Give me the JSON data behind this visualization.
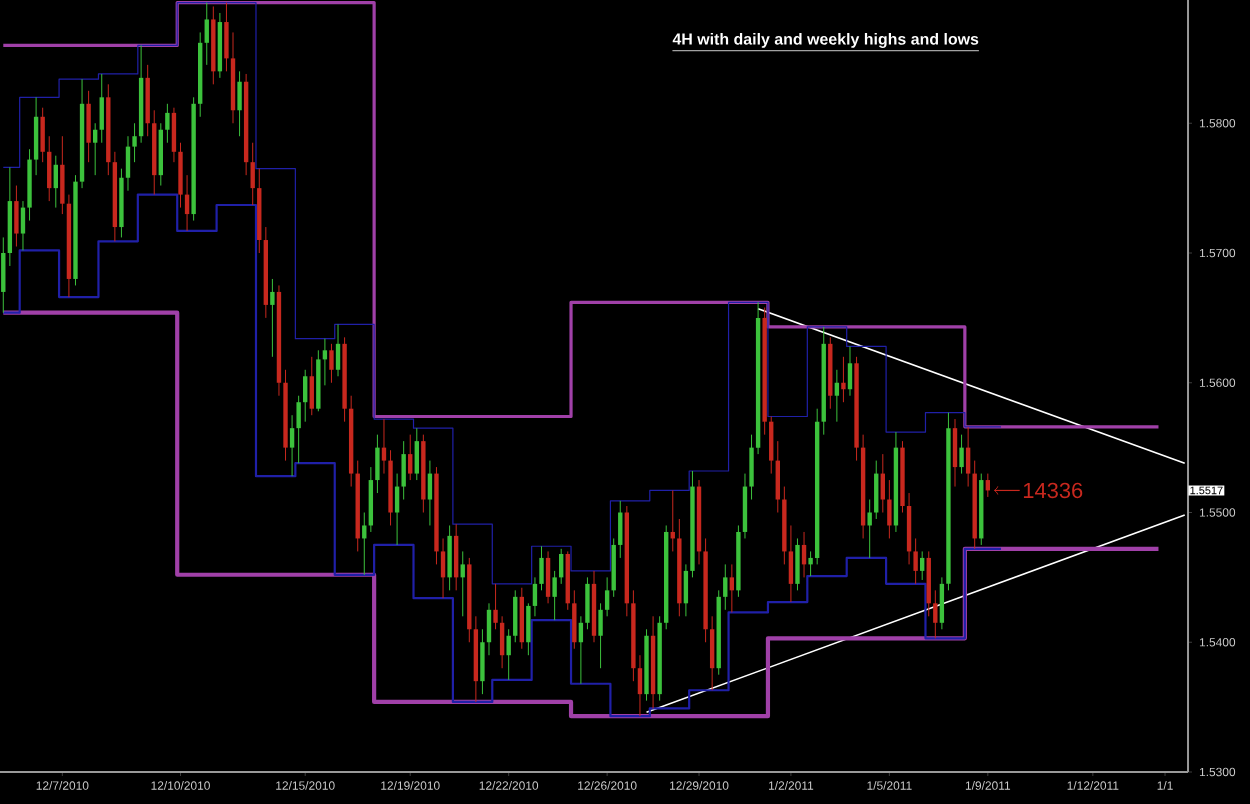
{
  "chart_data": {
    "type": "candlestick",
    "title": "4H with daily and weekly highs and lows",
    "categories": [
      null,
      null,
      null,
      null,
      null,
      null,
      null,
      null,
      null,
      "12/7/2010",
      null,
      null,
      null,
      null,
      null,
      null,
      null,
      null,
      null,
      null,
      null,
      null,
      null,
      null,
      null,
      null,
      null,
      "12/10/2010",
      null,
      null,
      null,
      null,
      null,
      null,
      null,
      null,
      null,
      null,
      null,
      null,
      null,
      null,
      null,
      null,
      null,
      null,
      "12/15/2010",
      null,
      null,
      null,
      null,
      null,
      null,
      null,
      null,
      null,
      null,
      null,
      null,
      null,
      null,
      null,
      "12/19/2010",
      null,
      null,
      null,
      null,
      null,
      null,
      null,
      null,
      null,
      null,
      null,
      null,
      null,
      null,
      "12/22/2010",
      null,
      null,
      null,
      null,
      null,
      null,
      null,
      null,
      null,
      null,
      null,
      null,
      null,
      null,
      "12/26/2010",
      null,
      null,
      null,
      null,
      null,
      null,
      null,
      null,
      null,
      null,
      null,
      null,
      null,
      "12/29/2010",
      null,
      null,
      null,
      null,
      null,
      null,
      null,
      null,
      null,
      null,
      null,
      null,
      null,
      "1/2/2011",
      null,
      null,
      null,
      null,
      null,
      null,
      null,
      null,
      null,
      null,
      null,
      null,
      null,
      null,
      "1/5/2011",
      null,
      null,
      null,
      null,
      null,
      null,
      null,
      null,
      null,
      null,
      null,
      null,
      null,
      null,
      "1/9/2011",
      null,
      null,
      null,
      null,
      null,
      null,
      null,
      null,
      null,
      null,
      null,
      null,
      null,
      null,
      null,
      "1/12/2011",
      null,
      null,
      null,
      null,
      null,
      null,
      null,
      null,
      null,
      null,
      "1/1",
      null,
      null,
      null
    ],
    "ohlc": [
      [
        1.567,
        1.5712,
        1.5654,
        1.57
      ],
      [
        1.57,
        1.5766,
        1.569,
        1.574
      ],
      [
        1.574,
        1.5752,
        1.5705,
        1.5715
      ],
      [
        1.5715,
        1.574,
        1.5702,
        1.5735
      ],
      [
        1.5735,
        1.578,
        1.5725,
        1.5772
      ],
      [
        1.5772,
        1.582,
        1.576,
        1.5805
      ],
      [
        1.5805,
        1.5812,
        1.577,
        1.5778
      ],
      [
        1.5778,
        1.579,
        1.574,
        1.575
      ],
      [
        1.575,
        1.5775,
        1.5735,
        1.5768
      ],
      [
        1.5768,
        1.579,
        1.573,
        1.5738
      ],
      [
        1.5738,
        1.5745,
        1.5666,
        1.568
      ],
      [
        1.568,
        1.576,
        1.5675,
        1.5755
      ],
      [
        1.5755,
        1.5834,
        1.575,
        1.5815
      ],
      [
        1.5815,
        1.5825,
        1.577,
        1.5785
      ],
      [
        1.5785,
        1.58,
        1.576,
        1.5795
      ],
      [
        1.5795,
        1.5838,
        1.5785,
        1.582
      ],
      [
        1.582,
        1.583,
        1.576,
        1.577
      ],
      [
        1.577,
        1.5778,
        1.5709,
        1.572
      ],
      [
        1.572,
        1.5765,
        1.5712,
        1.5758
      ],
      [
        1.5758,
        1.579,
        1.5748,
        1.5782
      ],
      [
        1.5782,
        1.58,
        1.577,
        1.579
      ],
      [
        1.579,
        1.586,
        1.5785,
        1.5835
      ],
      [
        1.5835,
        1.5845,
        1.579,
        1.58
      ],
      [
        1.58,
        1.581,
        1.5745,
        1.576
      ],
      [
        1.576,
        1.58,
        1.5752,
        1.5795
      ],
      [
        1.5795,
        1.5815,
        1.5785,
        1.5808
      ],
      [
        1.5808,
        1.5812,
        1.577,
        1.5778
      ],
      [
        1.5778,
        1.5785,
        1.5735,
        1.5745
      ],
      [
        1.5745,
        1.576,
        1.5717,
        1.573
      ],
      [
        1.573,
        1.582,
        1.5725,
        1.5815
      ],
      [
        1.5815,
        1.587,
        1.5805,
        1.5862
      ],
      [
        1.5862,
        1.5893,
        1.5845,
        1.588
      ],
      [
        1.588,
        1.589,
        1.583,
        1.584
      ],
      [
        1.584,
        1.5885,
        1.5835,
        1.5878
      ],
      [
        1.5878,
        1.5893,
        1.584,
        1.585
      ],
      [
        1.585,
        1.587,
        1.58,
        1.581
      ],
      [
        1.581,
        1.584,
        1.579,
        1.5832
      ],
      [
        1.5832,
        1.5838,
        1.576,
        1.577
      ],
      [
        1.577,
        1.5785,
        1.5737,
        1.575
      ],
      [
        1.575,
        1.5765,
        1.57,
        1.571
      ],
      [
        1.571,
        1.572,
        1.565,
        1.566
      ],
      [
        1.566,
        1.568,
        1.562,
        1.567
      ],
      [
        1.567,
        1.5675,
        1.559,
        1.56
      ],
      [
        1.56,
        1.561,
        1.554,
        1.555
      ],
      [
        1.555,
        1.5575,
        1.5528,
        1.5565
      ],
      [
        1.5565,
        1.559,
        1.5538,
        1.5585
      ],
      [
        1.5585,
        1.561,
        1.557,
        1.5605
      ],
      [
        1.5605,
        1.562,
        1.5575,
        1.558
      ],
      [
        1.558,
        1.5625,
        1.5578,
        1.5618
      ],
      [
        1.5618,
        1.5634,
        1.5598,
        1.5625
      ],
      [
        1.5625,
        1.563,
        1.56,
        1.561
      ],
      [
        1.561,
        1.5645,
        1.5605,
        1.563
      ],
      [
        1.563,
        1.5635,
        1.557,
        1.558
      ],
      [
        1.558,
        1.559,
        1.552,
        1.553
      ],
      [
        1.553,
        1.554,
        1.547,
        1.548
      ],
      [
        1.548,
        1.55,
        1.5452,
        1.549
      ],
      [
        1.549,
        1.5535,
        1.5485,
        1.5525
      ],
      [
        1.5525,
        1.556,
        1.5515,
        1.555
      ],
      [
        1.555,
        1.5572,
        1.553,
        1.554
      ],
      [
        1.554,
        1.5548,
        1.549,
        1.55
      ],
      [
        1.55,
        1.553,
        1.5475,
        1.552
      ],
      [
        1.552,
        1.5555,
        1.551,
        1.5545
      ],
      [
        1.5545,
        1.556,
        1.5525,
        1.553
      ],
      [
        1.553,
        1.5565,
        1.5525,
        1.5555
      ],
      [
        1.5555,
        1.556,
        1.55,
        1.551
      ],
      [
        1.551,
        1.554,
        1.549,
        1.553
      ],
      [
        1.553,
        1.5535,
        1.546,
        1.547
      ],
      [
        1.547,
        1.548,
        1.5434,
        1.545
      ],
      [
        1.545,
        1.549,
        1.544,
        1.5482
      ],
      [
        1.5482,
        1.5491,
        1.544,
        1.545
      ],
      [
        1.545,
        1.547,
        1.542,
        1.546
      ],
      [
        1.546,
        1.5465,
        1.54,
        1.541
      ],
      [
        1.541,
        1.542,
        1.5354,
        1.537
      ],
      [
        1.537,
        1.541,
        1.536,
        1.54
      ],
      [
        1.54,
        1.543,
        1.539,
        1.5425
      ],
      [
        1.5425,
        1.5445,
        1.541,
        1.5415
      ],
      [
        1.5415,
        1.542,
        1.538,
        1.539
      ],
      [
        1.539,
        1.541,
        1.5371,
        1.5405
      ],
      [
        1.5405,
        1.544,
        1.54,
        1.5435
      ],
      [
        1.5435,
        1.5442,
        1.5395,
        1.54
      ],
      [
        1.54,
        1.543,
        1.539,
        1.5428
      ],
      [
        1.5428,
        1.545,
        1.542,
        1.5445
      ],
      [
        1.5445,
        1.5474,
        1.544,
        1.5465
      ],
      [
        1.5465,
        1.547,
        1.543,
        1.5435
      ],
      [
        1.5435,
        1.5455,
        1.5417,
        1.545
      ],
      [
        1.545,
        1.5472,
        1.5445,
        1.5468
      ],
      [
        1.5468,
        1.547,
        1.5425,
        1.543
      ],
      [
        1.543,
        1.544,
        1.5395,
        1.54
      ],
      [
        1.54,
        1.542,
        1.5368,
        1.5415
      ],
      [
        1.5415,
        1.545,
        1.541,
        1.5445
      ],
      [
        1.5445,
        1.5455,
        1.54,
        1.5405
      ],
      [
        1.5405,
        1.543,
        1.538,
        1.5425
      ],
      [
        1.5425,
        1.545,
        1.542,
        1.544
      ],
      [
        1.544,
        1.548,
        1.5435,
        1.5475
      ],
      [
        1.5475,
        1.5509,
        1.5465,
        1.55
      ],
      [
        1.55,
        1.5505,
        1.542,
        1.543
      ],
      [
        1.543,
        1.544,
        1.537,
        1.538
      ],
      [
        1.538,
        1.539,
        1.5343,
        1.536
      ],
      [
        1.536,
        1.541,
        1.5355,
        1.5405
      ],
      [
        1.5405,
        1.542,
        1.5349,
        1.536
      ],
      [
        1.536,
        1.542,
        1.5355,
        1.5415
      ],
      [
        1.5415,
        1.549,
        1.541,
        1.5485
      ],
      [
        1.5485,
        1.5517,
        1.547,
        1.548
      ],
      [
        1.548,
        1.5495,
        1.542,
        1.543
      ],
      [
        1.543,
        1.546,
        1.542,
        1.5455
      ],
      [
        1.5455,
        1.5532,
        1.545,
        1.552
      ],
      [
        1.552,
        1.5525,
        1.546,
        1.547
      ],
      [
        1.547,
        1.548,
        1.54,
        1.541
      ],
      [
        1.541,
        1.542,
        1.5363,
        1.538
      ],
      [
        1.538,
        1.544,
        1.5375,
        1.5435
      ],
      [
        1.5435,
        1.546,
        1.5425,
        1.545
      ],
      [
        1.545,
        1.546,
        1.5423,
        1.544
      ],
      [
        1.544,
        1.549,
        1.5435,
        1.5485
      ],
      [
        1.5485,
        1.553,
        1.548,
        1.552
      ],
      [
        1.552,
        1.556,
        1.551,
        1.555
      ],
      [
        1.555,
        1.5662,
        1.5545,
        1.565
      ],
      [
        1.565,
        1.5658,
        1.556,
        1.557
      ],
      [
        1.557,
        1.5574,
        1.553,
        1.554
      ],
      [
        1.554,
        1.5555,
        1.55,
        1.551
      ],
      [
        1.551,
        1.552,
        1.546,
        1.547
      ],
      [
        1.547,
        1.549,
        1.5431,
        1.5445
      ],
      [
        1.5445,
        1.548,
        1.544,
        1.5475
      ],
      [
        1.5475,
        1.5485,
        1.545,
        1.546
      ],
      [
        1.546,
        1.547,
        1.5451,
        1.5465
      ],
      [
        1.5465,
        1.558,
        1.546,
        1.557
      ],
      [
        1.557,
        1.5643,
        1.556,
        1.563
      ],
      [
        1.563,
        1.5635,
        1.558,
        1.559
      ],
      [
        1.559,
        1.561,
        1.557,
        1.56
      ],
      [
        1.56,
        1.562,
        1.5585,
        1.5595
      ],
      [
        1.5595,
        1.5628,
        1.559,
        1.5615
      ],
      [
        1.5615,
        1.562,
        1.554,
        1.555
      ],
      [
        1.555,
        1.556,
        1.548,
        1.549
      ],
      [
        1.549,
        1.551,
        1.5465,
        1.55
      ],
      [
        1.55,
        1.554,
        1.5495,
        1.553
      ],
      [
        1.553,
        1.5545,
        1.55,
        1.551
      ],
      [
        1.551,
        1.5525,
        1.548,
        1.549
      ],
      [
        1.549,
        1.5562,
        1.5485,
        1.555
      ],
      [
        1.555,
        1.5555,
        1.55,
        1.5505
      ],
      [
        1.5505,
        1.5515,
        1.546,
        1.547
      ],
      [
        1.547,
        1.548,
        1.5445,
        1.5455
      ],
      [
        1.5455,
        1.547,
        1.5448,
        1.5465
      ],
      [
        1.5465,
        1.547,
        1.542,
        1.543
      ],
      [
        1.543,
        1.544,
        1.5403,
        1.5415
      ],
      [
        1.5415,
        1.545,
        1.541,
        1.5445
      ],
      [
        1.5445,
        1.5577,
        1.544,
        1.5565
      ],
      [
        1.5565,
        1.5572,
        1.552,
        1.5535
      ],
      [
        1.5535,
        1.556,
        1.553,
        1.555
      ],
      [
        1.555,
        1.5566,
        1.552,
        1.553
      ],
      [
        1.553,
        1.554,
        1.5472,
        1.548
      ],
      [
        1.548,
        1.553,
        1.5475,
        1.5525
      ],
      [
        1.5525,
        1.553,
        1.5512,
        1.5517
      ],
      null,
      null,
      null,
      null,
      null,
      null,
      null,
      null,
      null,
      null,
      null,
      null,
      null,
      null,
      null,
      null,
      null,
      null,
      null,
      null,
      null,
      null,
      null,
      null,
      null,
      null,
      null,
      null,
      null,
      null
    ],
    "series": [
      {
        "type": "step",
        "color": "#2020a8",
        "values": [
          1.5766,
          1.5766,
          1.5766,
          1.582,
          1.582,
          1.582,
          1.582,
          1.582,
          1.582,
          1.5834,
          1.5834,
          1.5834,
          1.5834,
          1.5834,
          1.5834,
          1.5838,
          1.5838,
          1.5838,
          1.5838,
          1.5838,
          1.5838,
          1.586,
          1.586,
          1.586,
          1.586,
          1.586,
          1.586,
          1.5893,
          1.5893,
          1.5893,
          1.5893,
          1.5893,
          1.5893,
          1.5893,
          1.5893,
          1.5893,
          1.5893,
          1.5893,
          1.5893,
          1.5765,
          1.5765,
          1.5765,
          1.5765,
          1.5765,
          1.5765,
          1.5634,
          1.5634,
          1.5634,
          1.5634,
          1.5634,
          1.5634,
          1.5645,
          1.5645,
          1.5645,
          1.5645,
          1.5645,
          1.5645,
          1.5572,
          1.5572,
          1.5572,
          1.5572,
          1.5572,
          1.5572,
          1.5565,
          1.5565,
          1.5565,
          1.5565,
          1.5565,
          1.5565,
          1.5491,
          1.5491,
          1.5491,
          1.5491,
          1.5491,
          1.5491,
          1.5445,
          1.5445,
          1.5445,
          1.5445,
          1.5445,
          1.5445,
          1.5474,
          1.5474,
          1.5474,
          1.5474,
          1.5474,
          1.5474,
          1.5455,
          1.5455,
          1.5455,
          1.5455,
          1.5455,
          1.5455,
          1.5509,
          1.5509,
          1.5509,
          1.5509,
          1.5509,
          1.5509,
          1.5517,
          1.5517,
          1.5517,
          1.5517,
          1.5517,
          1.5517,
          1.5532,
          1.5532,
          1.5532,
          1.5532,
          1.5532,
          1.5532,
          1.5662,
          1.5662,
          1.5662,
          1.5662,
          1.5662,
          1.5662,
          1.5574,
          1.5574,
          1.5574,
          1.5574,
          1.5574,
          1.5574,
          1.5643,
          1.5643,
          1.5643,
          1.5643,
          1.5643,
          1.5643,
          1.5628,
          1.5628,
          1.5628,
          1.5628,
          1.5628,
          1.5628,
          1.5562,
          1.5562,
          1.5562,
          1.5562,
          1.5562,
          1.5562,
          1.5577,
          1.5577,
          1.5577,
          1.5577,
          1.5577,
          1.5577,
          1.5566,
          1.5566,
          1.5566,
          1.5566,
          1.5566,
          1.5566,
          null,
          null,
          null,
          null,
          null,
          null,
          null,
          null,
          null,
          null,
          null,
          null,
          null,
          null,
          null,
          null,
          null,
          null,
          null,
          null,
          null,
          null,
          null,
          null,
          null,
          null,
          null,
          null
        ]
      },
      {
        "type": "step",
        "color": "#2020a8",
        "values": [
          1.5654,
          1.5654,
          1.5654,
          1.5702,
          1.5702,
          1.5702,
          1.5702,
          1.5702,
          1.5702,
          1.5666,
          1.5666,
          1.5666,
          1.5666,
          1.5666,
          1.5666,
          1.5709,
          1.5709,
          1.5709,
          1.5709,
          1.5709,
          1.5709,
          1.5745,
          1.5745,
          1.5745,
          1.5745,
          1.5745,
          1.5745,
          1.5717,
          1.5717,
          1.5717,
          1.5717,
          1.5717,
          1.5717,
          1.5737,
          1.5737,
          1.5737,
          1.5737,
          1.5737,
          1.5737,
          1.5528,
          1.5528,
          1.5528,
          1.5528,
          1.5528,
          1.5528,
          1.5538,
          1.5538,
          1.5538,
          1.5538,
          1.5538,
          1.5538,
          1.5452,
          1.5452,
          1.5452,
          1.5452,
          1.5452,
          1.5452,
          1.5475,
          1.5475,
          1.5475,
          1.5475,
          1.5475,
          1.5475,
          1.5434,
          1.5434,
          1.5434,
          1.5434,
          1.5434,
          1.5434,
          1.5354,
          1.5354,
          1.5354,
          1.5354,
          1.5354,
          1.5354,
          1.5371,
          1.5371,
          1.5371,
          1.5371,
          1.5371,
          1.5371,
          1.5417,
          1.5417,
          1.5417,
          1.5417,
          1.5417,
          1.5417,
          1.5368,
          1.5368,
          1.5368,
          1.5368,
          1.5368,
          1.5368,
          1.5343,
          1.5343,
          1.5343,
          1.5343,
          1.5343,
          1.5343,
          1.5349,
          1.5349,
          1.5349,
          1.5349,
          1.5349,
          1.5349,
          1.5363,
          1.5363,
          1.5363,
          1.5363,
          1.5363,
          1.5363,
          1.5423,
          1.5423,
          1.5423,
          1.5423,
          1.5423,
          1.5423,
          1.5431,
          1.5431,
          1.5431,
          1.5431,
          1.5431,
          1.5431,
          1.5451,
          1.5451,
          1.5451,
          1.5451,
          1.5451,
          1.5451,
          1.5465,
          1.5465,
          1.5465,
          1.5465,
          1.5465,
          1.5465,
          1.5445,
          1.5445,
          1.5445,
          1.5445,
          1.5445,
          1.5445,
          1.5403,
          1.5403,
          1.5403,
          1.5403,
          1.5403,
          1.5403,
          1.5472,
          1.5472,
          1.5472,
          1.5472,
          1.5472,
          1.5472,
          null,
          null,
          null,
          null,
          null,
          null,
          null,
          null,
          null,
          null,
          null,
          null,
          null,
          null,
          null,
          null,
          null,
          null,
          null,
          null,
          null,
          null,
          null,
          null,
          null,
          null,
          null,
          null
        ]
      },
      {
        "type": "step",
        "color": "#a040a8",
        "values": [
          1.586,
          1.586,
          1.586,
          1.586,
          1.586,
          1.586,
          1.586,
          1.586,
          1.586,
          1.586,
          1.586,
          1.586,
          1.586,
          1.586,
          1.586,
          1.586,
          1.586,
          1.586,
          1.586,
          1.586,
          1.586,
          1.586,
          1.586,
          1.586,
          1.586,
          1.586,
          1.586,
          1.5893,
          1.5893,
          1.5893,
          1.5893,
          1.5893,
          1.5893,
          1.5893,
          1.5893,
          1.5893,
          1.5893,
          1.5893,
          1.5893,
          1.5893,
          1.5893,
          1.5893,
          1.5893,
          1.5893,
          1.5893,
          1.5893,
          1.5893,
          1.5893,
          1.5893,
          1.5893,
          1.5893,
          1.5893,
          1.5893,
          1.5893,
          1.5893,
          1.5893,
          1.5893,
          1.5574,
          1.5574,
          1.5574,
          1.5574,
          1.5574,
          1.5574,
          1.5574,
          1.5574,
          1.5574,
          1.5574,
          1.5574,
          1.5574,
          1.5574,
          1.5574,
          1.5574,
          1.5574,
          1.5574,
          1.5574,
          1.5574,
          1.5574,
          1.5574,
          1.5574,
          1.5574,
          1.5574,
          1.5574,
          1.5574,
          1.5574,
          1.5574,
          1.5574,
          1.5574,
          1.5662,
          1.5662,
          1.5662,
          1.5662,
          1.5662,
          1.5662,
          1.5662,
          1.5662,
          1.5662,
          1.5662,
          1.5662,
          1.5662,
          1.5662,
          1.5662,
          1.5662,
          1.5662,
          1.5662,
          1.5662,
          1.5662,
          1.5662,
          1.5662,
          1.5662,
          1.5662,
          1.5662,
          1.5662,
          1.5662,
          1.5662,
          1.5662,
          1.5662,
          1.5662,
          1.5643,
          1.5643,
          1.5643,
          1.5643,
          1.5643,
          1.5643,
          1.5643,
          1.5643,
          1.5643,
          1.5643,
          1.5643,
          1.5643,
          1.5643,
          1.5643,
          1.5643,
          1.5643,
          1.5643,
          1.5643,
          1.5643,
          1.5643,
          1.5643,
          1.5643,
          1.5643,
          1.5643,
          1.5643,
          1.5643,
          1.5643,
          1.5643,
          1.5643,
          1.5643,
          1.5566,
          1.5566,
          1.5566,
          1.5566,
          1.5566,
          1.5566,
          1.5566,
          1.5566,
          1.5566,
          1.5566,
          1.5566,
          1.5566,
          1.5566,
          1.5566,
          1.5566,
          1.5566,
          1.5566,
          1.5566,
          1.5566,
          1.5566,
          1.5566,
          1.5566,
          1.5566,
          1.5566,
          1.5566,
          1.5566,
          1.5566,
          1.5566,
          1.5566,
          1.5566,
          null,
          null,
          null,
          null
        ]
      },
      {
        "type": "step",
        "color": "#a040a8",
        "values": [
          1.5654,
          1.5654,
          1.5654,
          1.5654,
          1.5654,
          1.5654,
          1.5654,
          1.5654,
          1.5654,
          1.5654,
          1.5654,
          1.5654,
          1.5654,
          1.5654,
          1.5654,
          1.5654,
          1.5654,
          1.5654,
          1.5654,
          1.5654,
          1.5654,
          1.5654,
          1.5654,
          1.5654,
          1.5654,
          1.5654,
          1.5654,
          1.5452,
          1.5452,
          1.5452,
          1.5452,
          1.5452,
          1.5452,
          1.5452,
          1.5452,
          1.5452,
          1.5452,
          1.5452,
          1.5452,
          1.5452,
          1.5452,
          1.5452,
          1.5452,
          1.5452,
          1.5452,
          1.5452,
          1.5452,
          1.5452,
          1.5452,
          1.5452,
          1.5452,
          1.5452,
          1.5452,
          1.5452,
          1.5452,
          1.5452,
          1.5452,
          1.5354,
          1.5354,
          1.5354,
          1.5354,
          1.5354,
          1.5354,
          1.5354,
          1.5354,
          1.5354,
          1.5354,
          1.5354,
          1.5354,
          1.5354,
          1.5354,
          1.5354,
          1.5354,
          1.5354,
          1.5354,
          1.5354,
          1.5354,
          1.5354,
          1.5354,
          1.5354,
          1.5354,
          1.5354,
          1.5354,
          1.5354,
          1.5354,
          1.5354,
          1.5354,
          1.5343,
          1.5343,
          1.5343,
          1.5343,
          1.5343,
          1.5343,
          1.5343,
          1.5343,
          1.5343,
          1.5343,
          1.5343,
          1.5343,
          1.5343,
          1.5343,
          1.5343,
          1.5343,
          1.5343,
          1.5343,
          1.5343,
          1.5343,
          1.5343,
          1.5343,
          1.5343,
          1.5343,
          1.5343,
          1.5343,
          1.5343,
          1.5343,
          1.5343,
          1.5343,
          1.5403,
          1.5403,
          1.5403,
          1.5403,
          1.5403,
          1.5403,
          1.5403,
          1.5403,
          1.5403,
          1.5403,
          1.5403,
          1.5403,
          1.5403,
          1.5403,
          1.5403,
          1.5403,
          1.5403,
          1.5403,
          1.5403,
          1.5403,
          1.5403,
          1.5403,
          1.5403,
          1.5403,
          1.5403,
          1.5403,
          1.5403,
          1.5403,
          1.5403,
          1.5403,
          1.5472,
          1.5472,
          1.5472,
          1.5472,
          1.5472,
          1.5472,
          1.5472,
          1.5472,
          1.5472,
          1.5472,
          1.5472,
          1.5472,
          1.5472,
          1.5472,
          1.5472,
          1.5472,
          1.5472,
          1.5472,
          1.5472,
          1.5472,
          1.5472,
          1.5472,
          1.5472,
          1.5472,
          1.5472,
          1.5472,
          1.5472,
          1.5472,
          1.5472,
          1.5472,
          null,
          null,
          null,
          null
        ]
      },
      {
        "type": "line",
        "color": "#ffffff",
        "values": [
          null,
          null,
          null,
          null,
          null,
          null,
          null,
          null,
          null,
          null,
          null,
          null,
          null,
          null,
          null,
          null,
          null,
          null,
          null,
          null,
          null,
          null,
          null,
          null,
          null,
          null,
          null,
          null,
          null,
          null,
          null,
          null,
          null,
          null,
          null,
          null,
          null,
          null,
          null,
          null,
          null,
          null,
          null,
          null,
          null,
          null,
          null,
          null,
          null,
          null,
          null,
          null,
          null,
          null,
          null,
          null,
          null,
          null,
          null,
          null,
          null,
          null,
          null,
          null,
          null,
          null,
          null,
          null,
          null,
          null,
          null,
          null,
          null,
          null,
          null,
          null,
          null,
          null,
          null,
          null,
          null,
          null,
          null,
          null,
          null,
          null,
          null,
          null,
          null,
          null,
          null,
          null,
          null,
          null,
          null,
          null,
          null,
          null,
          null,
          null,
          null,
          null,
          null,
          null,
          null,
          null,
          null,
          null,
          null,
          null,
          null,
          null,
          null,
          null,
          null,
          1.5657,
          null,
          null,
          null,
          null,
          null,
          null,
          null,
          null,
          null,
          null,
          null,
          null,
          null,
          null,
          null,
          null,
          null,
          null,
          null,
          null,
          null,
          null,
          null,
          null,
          null,
          null,
          null,
          null,
          null,
          null,
          null,
          null,
          null,
          null,
          null,
          null,
          null,
          null,
          null,
          null,
          null,
          null,
          null,
          null,
          null,
          null,
          null,
          null,
          null,
          null,
          null,
          null,
          null,
          null,
          null,
          null,
          null,
          null,
          null,
          null,
          null,
          null,
          null,
          null,
          1.5538
        ]
      },
      {
        "type": "line",
        "color": "#ffffff",
        "values": [
          null,
          null,
          null,
          null,
          null,
          null,
          null,
          null,
          null,
          null,
          null,
          null,
          null,
          null,
          null,
          null,
          null,
          null,
          null,
          null,
          null,
          null,
          null,
          null,
          null,
          null,
          null,
          null,
          null,
          null,
          null,
          null,
          null,
          null,
          null,
          null,
          null,
          null,
          null,
          null,
          null,
          null,
          null,
          null,
          null,
          null,
          null,
          null,
          null,
          null,
          null,
          null,
          null,
          null,
          null,
          null,
          null,
          null,
          null,
          null,
          null,
          null,
          null,
          null,
          null,
          null,
          null,
          null,
          null,
          null,
          null,
          null,
          null,
          null,
          null,
          null,
          null,
          null,
          null,
          null,
          null,
          null,
          null,
          null,
          null,
          null,
          null,
          null,
          null,
          null,
          null,
          null,
          null,
          null,
          null,
          null,
          null,
          null,
          1.5346,
          null,
          null,
          null,
          null,
          null,
          null,
          null,
          null,
          null,
          null,
          null,
          null,
          null,
          null,
          null,
          null,
          null,
          null,
          null,
          null,
          null,
          null,
          null,
          null,
          null,
          null,
          null,
          null,
          null,
          null,
          null,
          null,
          null,
          null,
          null,
          null,
          null,
          null,
          null,
          null,
          null,
          null,
          null,
          null,
          null,
          null,
          null,
          null,
          null,
          null,
          null,
          null,
          null,
          null,
          null,
          null,
          null,
          null,
          null,
          null,
          null,
          null,
          null,
          null,
          null,
          null,
          null,
          null,
          null,
          null,
          null,
          null,
          null,
          null,
          null,
          null,
          null,
          null,
          null,
          null,
          null,
          1.5498
        ]
      }
    ],
    "ylim": [
      1.53,
      1.5895
    ],
    "yticks": [
      {
        "value": 1.53,
        "label": "1.5300"
      },
      {
        "value": 1.54,
        "label": "1.5400"
      },
      {
        "value": 1.55,
        "label": "1.5500"
      },
      {
        "value": 1.56,
        "label": "1.5600"
      },
      {
        "value": 1.57,
        "label": "1.5700"
      },
      {
        "value": 1.58,
        "label": "1.5800"
      }
    ],
    "annotations": [
      "14336",
      "1.5517"
    ]
  }
}
